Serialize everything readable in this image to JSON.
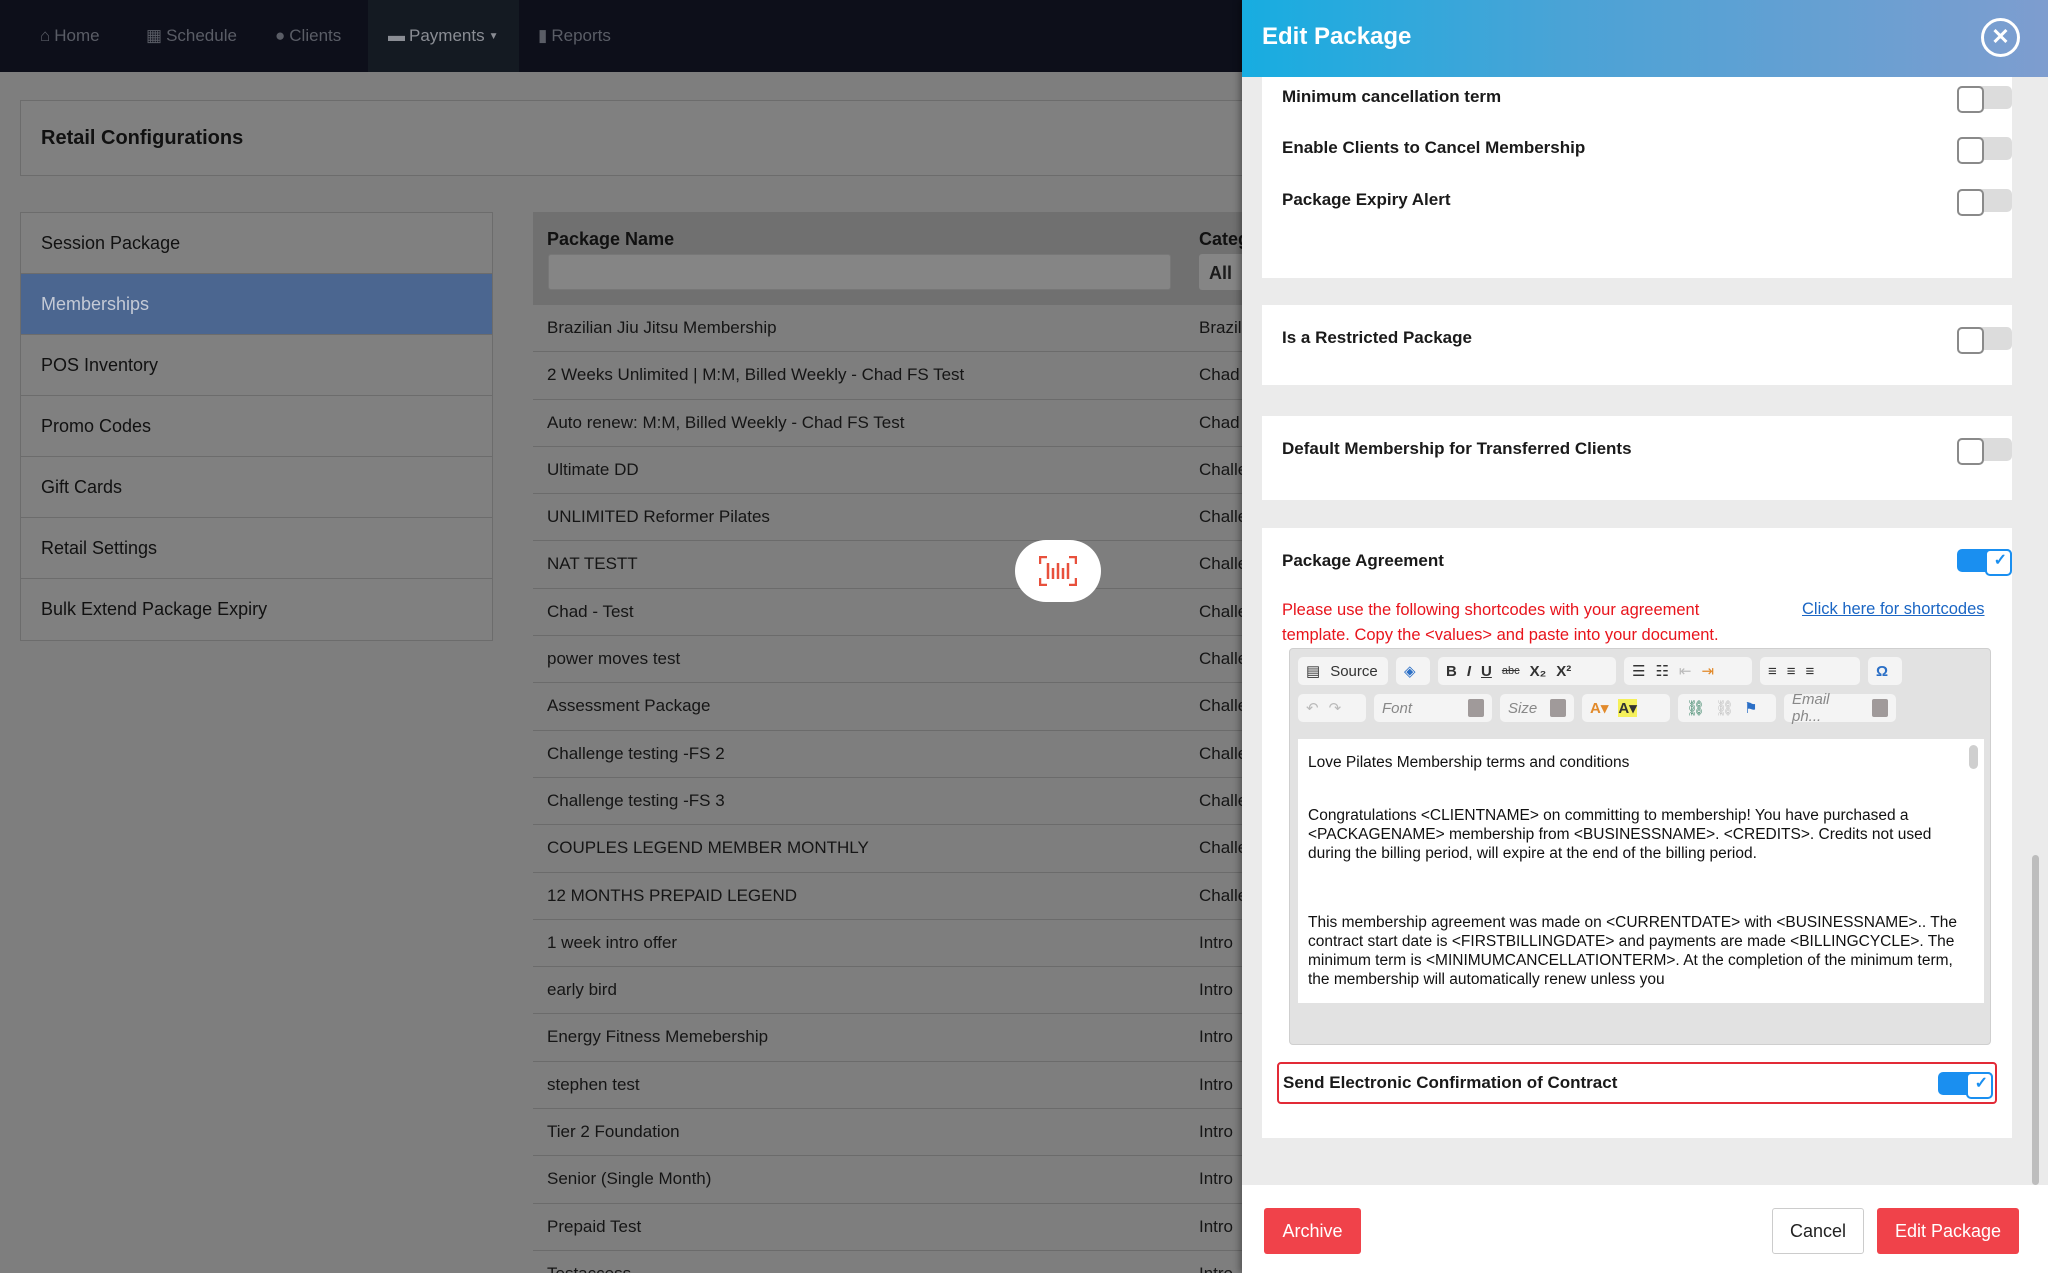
{
  "nav": {
    "items": [
      {
        "label": "Home",
        "icon": "home-icon"
      },
      {
        "label": "Schedule",
        "icon": "calendar-icon"
      },
      {
        "label": "Clients",
        "icon": "user-icon"
      },
      {
        "label": "Payments",
        "icon": "credit-card-icon"
      },
      {
        "label": "Reports",
        "icon": "bar-chart-icon"
      }
    ],
    "active": "Payments"
  },
  "page": {
    "title": "Retail Configurations"
  },
  "sidebar": {
    "items": [
      {
        "label": "Session Package"
      },
      {
        "label": "Memberships"
      },
      {
        "label": "POS Inventory"
      },
      {
        "label": "Promo Codes"
      },
      {
        "label": "Gift Cards"
      },
      {
        "label": "Retail Settings"
      },
      {
        "label": "Bulk Extend Package Expiry"
      }
    ],
    "active": "Memberships"
  },
  "table": {
    "columns": [
      "Package Name",
      "Categ"
    ],
    "category_filter": "All",
    "search_value": "",
    "rows": [
      [
        "Brazilian Jiu Jitsu Membership",
        "Brazil"
      ],
      [
        "2 Weeks Unlimited | M:M, Billed Weekly - Chad FS Test",
        "Chad"
      ],
      [
        "Auto renew: M:M, Billed Weekly - Chad FS Test",
        "Chad"
      ],
      [
        "Ultimate DD",
        "Challe"
      ],
      [
        "UNLIMITED Reformer Pilates",
        "Challe"
      ],
      [
        "NAT TESTT",
        "Challe"
      ],
      [
        "Chad - Test",
        "Challe"
      ],
      [
        "power moves test",
        "Challe"
      ],
      [
        "Assessment Package",
        "Challe"
      ],
      [
        "Challenge testing -FS 2",
        "Challe"
      ],
      [
        "Challenge testing -FS 3",
        "Challe"
      ],
      [
        "COUPLES LEGEND MEMBER MONTHLY",
        "Challe"
      ],
      [
        "12 MONTHS PREPAID LEGEND",
        "Challe"
      ],
      [
        "1 week intro offer",
        "Intro"
      ],
      [
        "early bird",
        "Intro"
      ],
      [
        "Energy Fitness Memebership",
        "Intro"
      ],
      [
        "stephen test",
        "Intro"
      ],
      [
        "Tier 2 Foundation",
        "Intro"
      ],
      [
        "Senior (Single Month)",
        "Intro"
      ],
      [
        "Prepaid Test",
        "Intro"
      ],
      [
        "Testaccess",
        "Intro"
      ]
    ]
  },
  "panel": {
    "title": "Edit Package",
    "close_icon": "close-circle-icon",
    "toggles": [
      {
        "label": "Minimum cancellation term",
        "on": false
      },
      {
        "label": "Enable Clients to Cancel Membership",
        "on": false
      },
      {
        "label": "Package Expiry Alert",
        "on": false
      },
      {
        "label": "Is a Restricted Package",
        "on": false
      },
      {
        "label": "Default Membership for Transferred Clients",
        "on": false
      },
      {
        "label": "Package Agreement",
        "on": true
      },
      {
        "label": "Send Electronic Confirmation of Contract",
        "on": true
      }
    ],
    "agreement": {
      "notice": "Please use the following shortcodes with your agreement template. Copy the <values> and paste into your document.",
      "link": "Click here for shortcodes",
      "toolbar": {
        "source": "Source",
        "font": "Font",
        "size": "Size",
        "email": "Email ph..."
      },
      "content": [
        "Love Pilates Membership terms and conditions",
        "Congratulations <CLIENTNAME> on committing to membership! You have purchased a <PACKAGENAME> membership from <BUSINESSNAME>.  <CREDITS>. Credits not used during the billing period, will expire at the end of the billing period.",
        "This membership agreement was made on <CURRENTDATE> with <BUSINESSNAME>.. The contract start date is <FIRSTBILLINGDATE> and payments are made <BILLINGCYCLE>. The minimum term is <MINIMUMCANCELLATIONTERM>. At the completion of the minimum term, the membership will automatically renew unless you"
      ]
    },
    "footer": {
      "archive": "Archive",
      "cancel": "Cancel",
      "submit": "Edit Package"
    },
    "colors": {
      "accent": "#1a8ff0",
      "danger": "#f0424a",
      "header_start": "#17ade1",
      "header_end": "#7e9dcf"
    }
  }
}
